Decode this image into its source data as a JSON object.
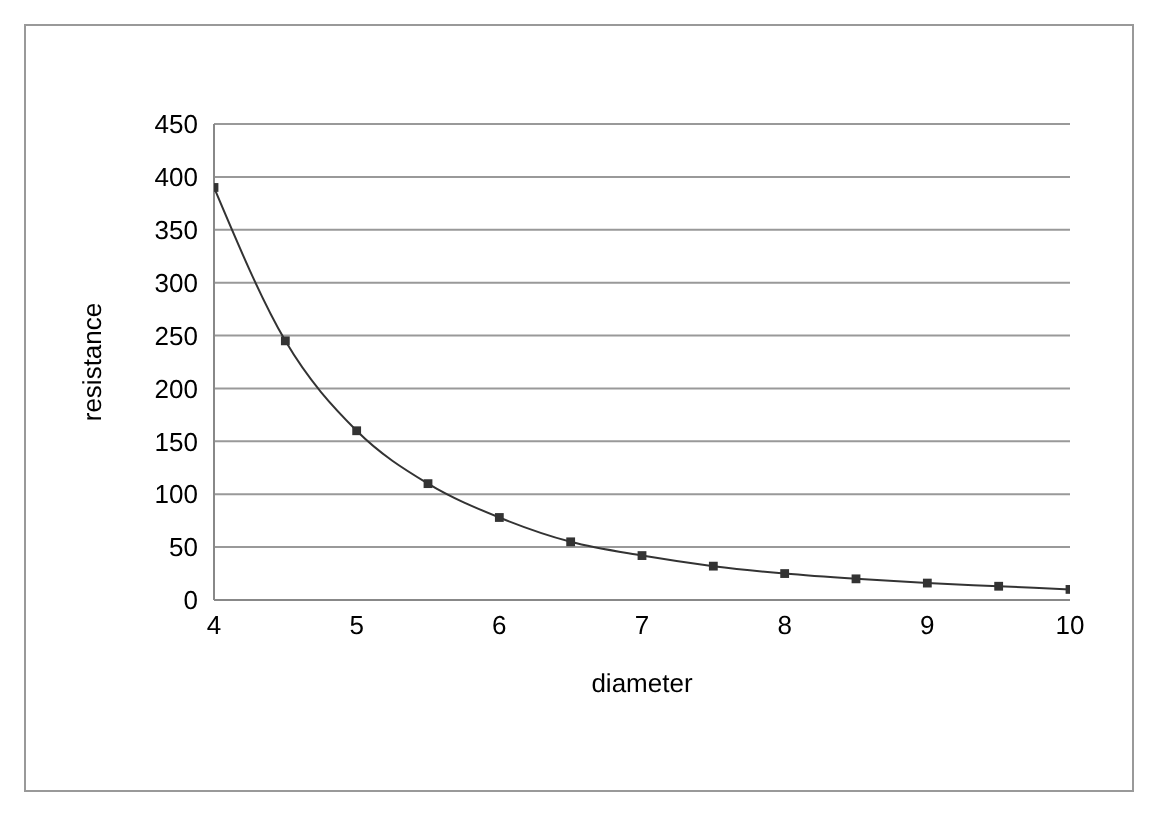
{
  "chart_data": {
    "type": "line",
    "xlabel": "diameter",
    "ylabel": "resistance",
    "x": [
      4,
      4.5,
      5,
      5.5,
      6,
      6.5,
      7,
      7.5,
      8,
      8.5,
      9,
      9.5,
      10
    ],
    "series": [
      {
        "color": "#333333",
        "values": [
          390,
          245,
          160,
          110,
          78,
          55,
          42,
          32,
          25,
          20,
          16,
          13,
          10
        ]
      }
    ],
    "xlim": [
      4,
      10
    ],
    "xticks": [
      4,
      5,
      6,
      7,
      8,
      9,
      10
    ],
    "ylim": [
      0,
      450
    ],
    "yticks": [
      0,
      50,
      100,
      150,
      200,
      250,
      300,
      350,
      400,
      450
    ],
    "grid": "y",
    "marker": "square",
    "line_style": "solid"
  }
}
